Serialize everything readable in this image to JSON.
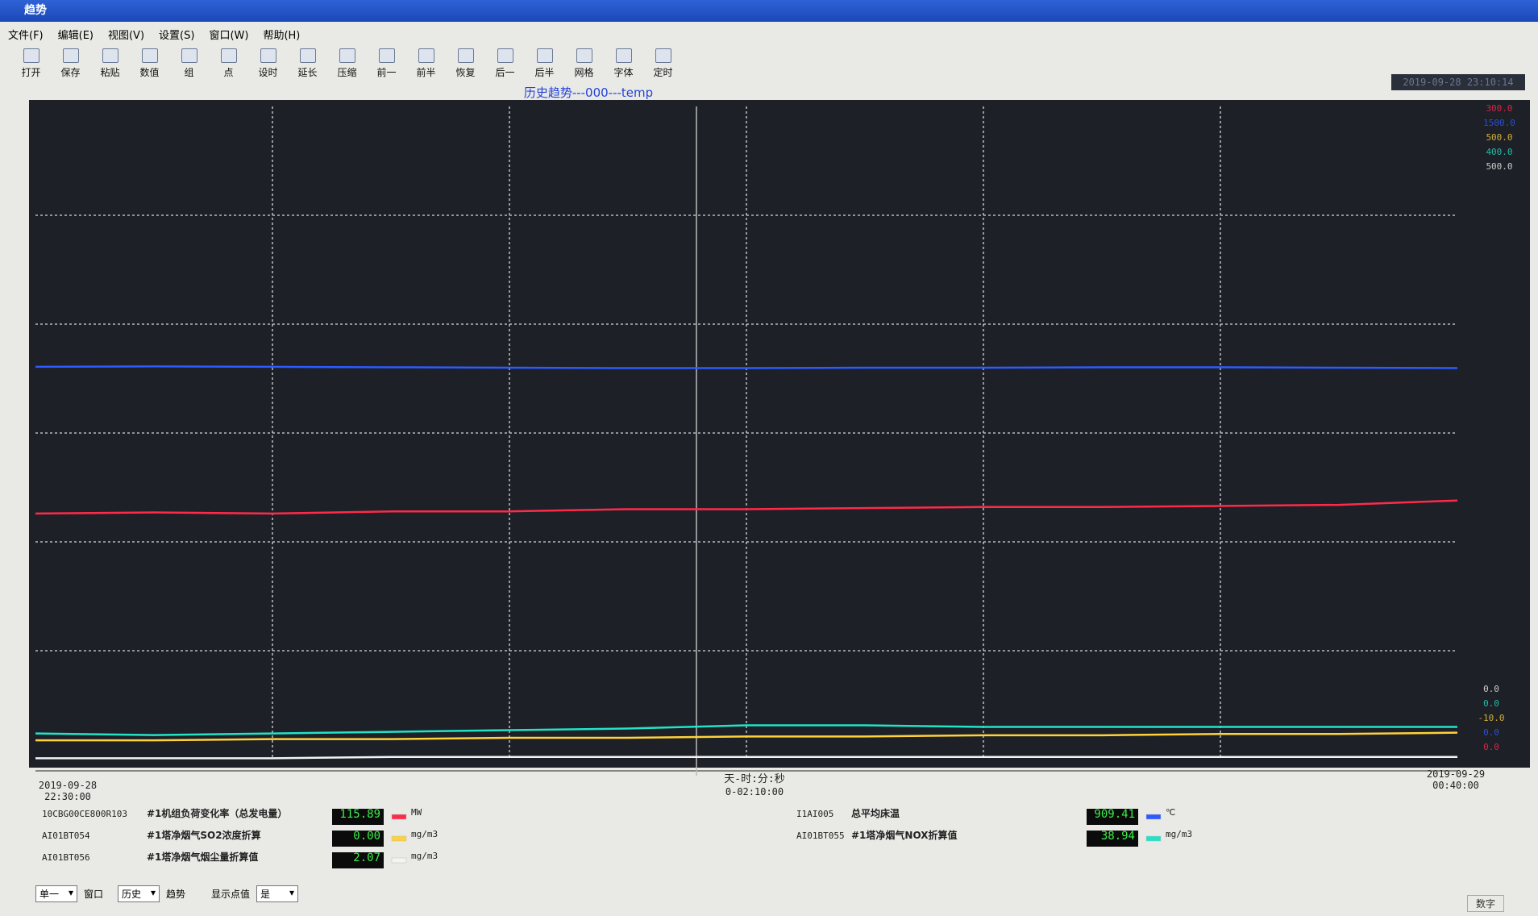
{
  "window": {
    "title": "趋势"
  },
  "menu": [
    "文件(F)",
    "编辑(E)",
    "视图(V)",
    "设置(S)",
    "窗口(W)",
    "帮助(H)"
  ],
  "toolbar": [
    "打开",
    "保存",
    "粘贴",
    "数值",
    "组",
    "点",
    "设时",
    "延长",
    "压缩",
    "前一",
    "前半",
    "恢复",
    "后一",
    "后半",
    "网格",
    "字体",
    "定时"
  ],
  "header": {
    "title": "历史趋势---000---temp",
    "timestamp": "2019-09-28 23:10:14"
  },
  "trend": {
    "start": [
      "2019-09-28",
      "22:30:00"
    ],
    "end": [
      "2019-09-29",
      "00:40:00"
    ],
    "cursor_label": "天-时:分:秒",
    "span": "0-02:10:00",
    "series": [
      {
        "tag": "10CBG00CE800R103",
        "desc": "#1机组负荷变化率（总发电量）",
        "reading": "115.89",
        "unit": "MW",
        "color": "#ff2a4a",
        "scale_min": {
          "value": 0,
          "label": "0.0"
        },
        "scale_max": {
          "value": 300,
          "label": "300.0"
        },
        "values": [
          113,
          113.5,
          113,
          114,
          114,
          115,
          115,
          115.5,
          116,
          116,
          116.5,
          117,
          119
        ]
      },
      {
        "tag": "I1AI005",
        "desc": "总平均床温",
        "reading": "909.41",
        "unit": "℃",
        "color": "#2d5bff",
        "scale_min": {
          "value": 0,
          "label": "0.0"
        },
        "scale_max": {
          "value": 1500,
          "label": "1500.0"
        },
        "values": [
          902,
          903,
          902,
          901,
          900,
          899,
          899,
          900,
          900,
          901,
          901,
          900,
          899
        ]
      },
      {
        "tag": "AI01BT054",
        "desc": "#1塔净烟气SO2浓度折算",
        "reading": "0.00",
        "unit": "mg/m3",
        "color": "#ffd23a",
        "scale_min": {
          "value": -10,
          "label": "-10.0"
        },
        "scale_max": {
          "value": 500,
          "label": "500.0"
        },
        "values": [
          5,
          5,
          6,
          6,
          7,
          7,
          8,
          8,
          9,
          9,
          10,
          10,
          11
        ]
      },
      {
        "tag": "AI01BT055",
        "desc": "#1塔净烟气NOX折算值",
        "reading": "38.94",
        "unit": "mg/m3",
        "color": "#22e3c8",
        "scale_min": {
          "value": 0,
          "label": "0.0"
        },
        "scale_max": {
          "value": 400,
          "label": "400.0"
        },
        "values": [
          16,
          15,
          16,
          17,
          18,
          19,
          21,
          21,
          20,
          20,
          20,
          20,
          20
        ]
      },
      {
        "tag": "AI01BT056",
        "desc": "#1塔净烟气烟尘量折算值",
        "reading": "2.07",
        "unit": "mg/m3",
        "color": "#f4f4f4",
        "scale_min": {
          "value": 0,
          "label": "0.0"
        },
        "scale_max": {
          "value": 500,
          "label": "500.0"
        },
        "values": [
          1,
          1,
          1,
          2,
          2,
          2,
          2,
          2,
          2,
          2,
          2,
          2,
          2
        ]
      }
    ]
  },
  "statusbar": {
    "window_mode": "单一",
    "window_label": "窗口",
    "data_mode": "历史",
    "trend_label": "趋势",
    "show_label": "显示点值",
    "show_value": "是",
    "mode": "数字"
  }
}
